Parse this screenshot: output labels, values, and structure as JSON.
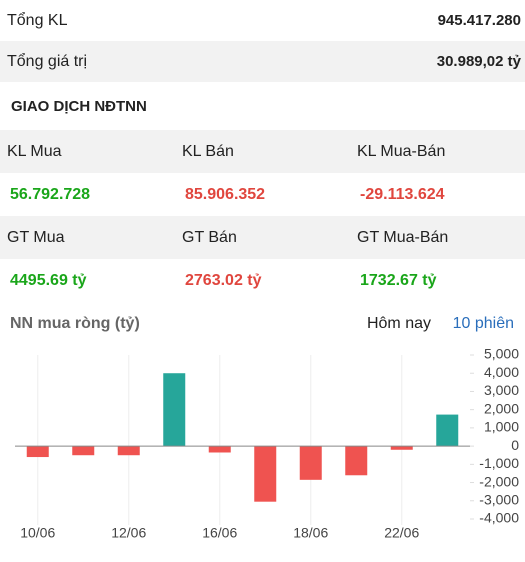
{
  "summary": [
    {
      "label": "Tổng KL",
      "value": "945.417.280"
    },
    {
      "label": "Tổng giá trị",
      "value": "30.989,02 tỷ"
    }
  ],
  "section_title": "GIAO DỊCH NĐTNN",
  "stats": [
    [
      {
        "label": "KL Mua",
        "value": "56.792.728",
        "color": "#1aa61a"
      },
      {
        "label": "KL Bán",
        "value": "85.906.352",
        "color": "#e0463e"
      },
      {
        "label": "KL Mua-Bán",
        "value": "-29.113.624",
        "color": "#e0463e"
      }
    ],
    [
      {
        "label": "GT Mua",
        "value": "4495.69 tỷ",
        "color": "#1aa61a"
      },
      {
        "label": "GT Bán",
        "value": "2763.02 tỷ",
        "color": "#e0463e"
      },
      {
        "label": "GT Mua-Bán",
        "value": "1732.67 tỷ",
        "color": "#1aa61a"
      }
    ]
  ],
  "chart_data": {
    "type": "bar",
    "title": "NN mua ròng (tỷ)",
    "tabs": [
      "Hôm nay",
      "10 phiên"
    ],
    "categories": [
      "10/06",
      null,
      "12/06",
      null,
      "16/06",
      null,
      "18/06",
      null,
      "22/06",
      null
    ],
    "values": [
      -600,
      -500,
      -500,
      4000,
      -350,
      -3050,
      -1850,
      -1600,
      -200,
      1730
    ],
    "positive_color": "#26a69a",
    "negative_color": "#ef5350",
    "ylim": [
      -4000,
      5000
    ],
    "yticks": [
      {
        "value": 5000,
        "label": "5,000"
      },
      {
        "value": 4000,
        "label": "4,000"
      },
      {
        "value": 3000,
        "label": "3,000"
      },
      {
        "value": 2000,
        "label": "2,000"
      },
      {
        "value": 1000,
        "label": "1,000"
      },
      0,
      {
        "value": -1000,
        "label": "-1,000"
      },
      {
        "value": -2000,
        "label": "-2,000"
      },
      {
        "value": -3000,
        "label": "-3,000"
      },
      {
        "value": -4000,
        "label": "-4,000"
      }
    ]
  }
}
